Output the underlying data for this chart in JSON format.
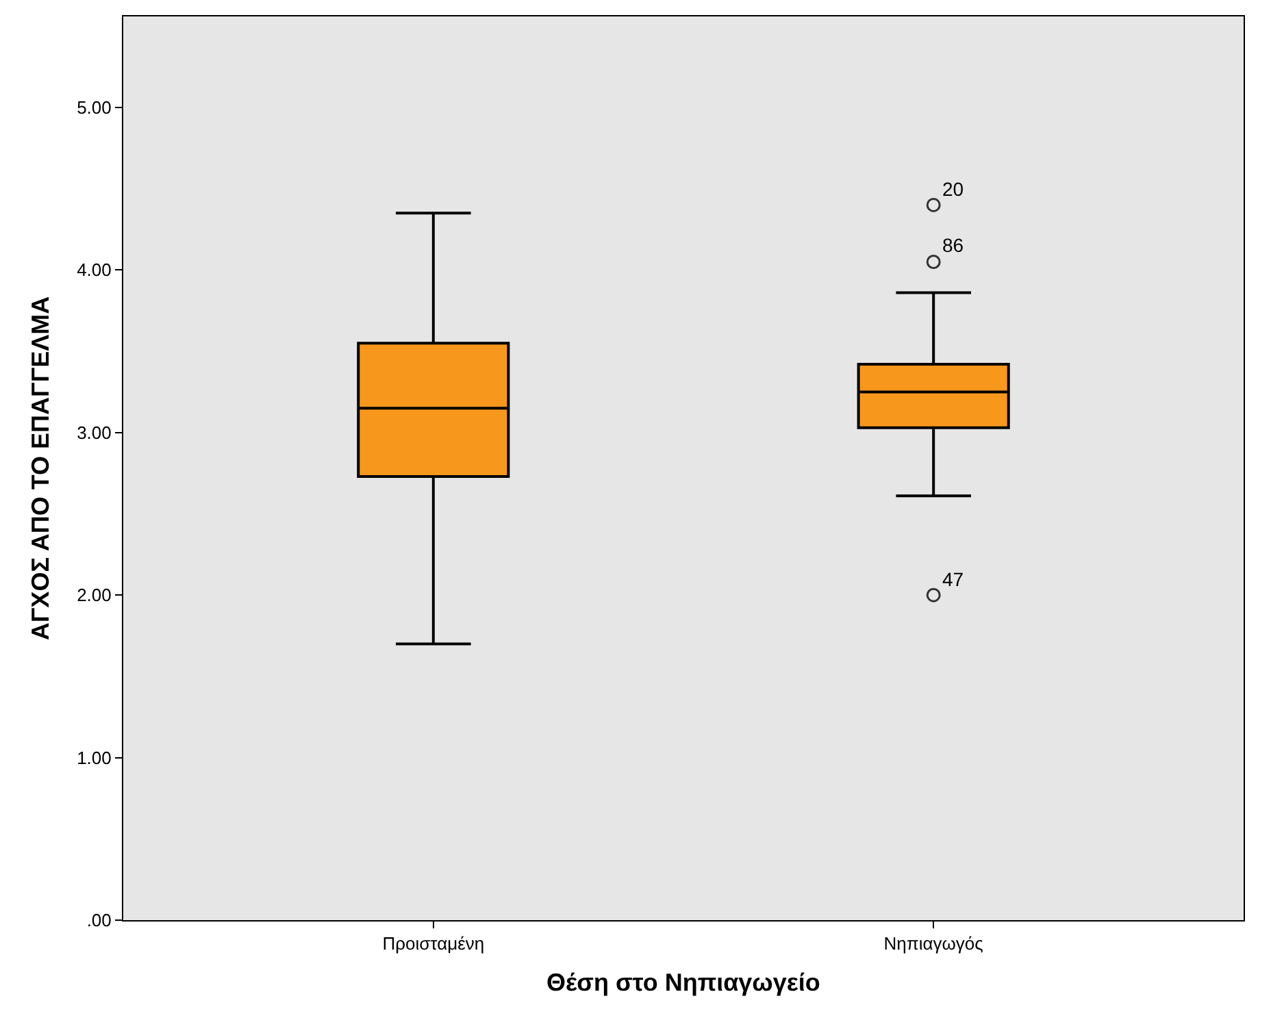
{
  "chart_data": {
    "type": "box",
    "xlabel": "Θέση στο Νηπιαγωγείο",
    "ylabel": "ΑΓΧΟΣ ΑΠΟ ΤΟ ΕΠΑΓΓΕΛΜΑ",
    "categories": [
      "Προισταμένη",
      "Νηπιαγωγός"
    ],
    "boxes": [
      {
        "low": 1.7,
        "q1": 2.73,
        "median": 3.15,
        "q3": 3.55,
        "high": 4.35
      },
      {
        "low": 2.61,
        "q1": 3.03,
        "median": 3.25,
        "q3": 3.42,
        "high": 3.86,
        "outliers": [
          4.4,
          4.05,
          2.0
        ]
      }
    ],
    "color": "#f7981d",
    "ylim": [
      0,
      5.56
    ],
    "yticks": [
      {
        "value": 0,
        "label": ".00"
      },
      {
        "value": 1,
        "label": "1.00"
      },
      {
        "value": 2,
        "label": "2.00"
      },
      {
        "value": 3,
        "label": "3.00"
      },
      {
        "value": 4,
        "label": "4.00"
      },
      {
        "value": 5,
        "label": "5.00"
      }
    ],
    "annotations": [
      "20",
      "86",
      "47"
    ],
    "grid": false
  }
}
